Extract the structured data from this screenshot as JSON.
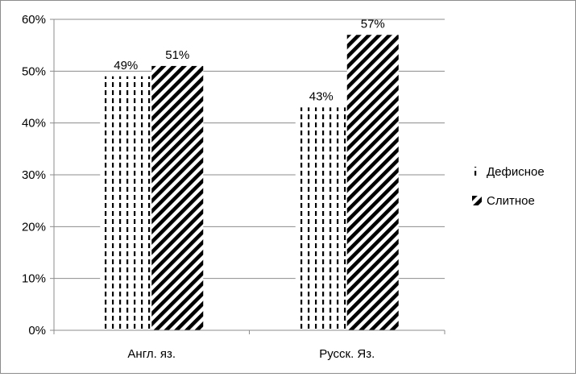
{
  "chart_data": {
    "type": "bar",
    "categories": [
      "Англ. яз.",
      "Русск. Яз."
    ],
    "series": [
      {
        "name": "Дефисное",
        "values": [
          49,
          43
        ],
        "labels": [
          "49%",
          "43%"
        ],
        "pattern": "vertical-dashes"
      },
      {
        "name": "Слитное",
        "values": [
          51,
          57
        ],
        "labels": [
          "51%",
          "57%"
        ],
        "pattern": "diagonal-stripes"
      }
    ],
    "ylim": [
      0,
      60
    ],
    "yticks": [
      0,
      10,
      20,
      30,
      40,
      50,
      60
    ],
    "ytick_labels": [
      "0%",
      "10%",
      "20%",
      "30%",
      "40%",
      "50%",
      "60%"
    ],
    "grid": true,
    "legend_position": "right",
    "colors": {
      "ink": "#000000",
      "grid": "#8c8c8c",
      "background": "#ffffff"
    }
  }
}
